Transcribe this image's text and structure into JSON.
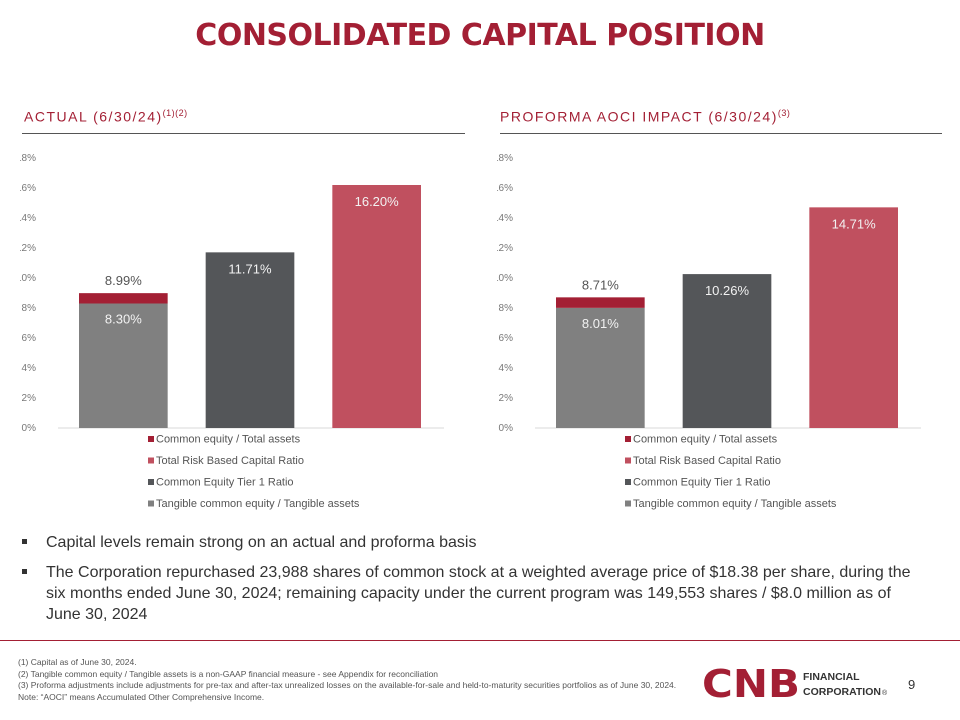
{
  "title": "CONSOLIDATED CAPITAL POSITION",
  "left_section": {
    "heading": "ACTUAL (6/30/24)",
    "superscript": "(1)(2)"
  },
  "right_section": {
    "heading": "PROFORMA AOCI IMPACT (6/30/24)",
    "superscript": "(3)"
  },
  "colors": {
    "common_equity_total_assets": "#a31f34",
    "total_risk_based": "#c0505f",
    "cet1": "#545659",
    "tangible": "#808080",
    "brand": "#a31f34"
  },
  "chart_data": [
    {
      "type": "bar",
      "ylim": [
        0,
        18
      ],
      "yticks": [
        "0%",
        "2%",
        "4%",
        "6%",
        "8%",
        "10%",
        "12%",
        "14%",
        "16%",
        "18%"
      ],
      "yticks_values": [
        0,
        2,
        4,
        6,
        8,
        10,
        12,
        14,
        16,
        18
      ],
      "grid": false,
      "legend_position": "bottom",
      "legend": [
        "Common equity / Total assets",
        "Total Risk Based Capital Ratio",
        "Common Equity Tier 1 Ratio",
        "Tangible common equity / Tangible assets"
      ],
      "bars": [
        {
          "stack": [
            {
              "series": "Tangible common equity / Tangible assets",
              "value": 8.3,
              "label": "8.30%"
            },
            {
              "series": "Common equity / Total assets",
              "value": 0.69,
              "total": 8.99,
              "label": "8.99%"
            }
          ]
        },
        {
          "stack": [
            {
              "series": "Common Equity Tier 1 Ratio",
              "value": 11.71,
              "label": "11.71%"
            }
          ]
        },
        {
          "stack": [
            {
              "series": "Total Risk Based Capital Ratio",
              "value": 16.2,
              "label": "16.20%"
            }
          ]
        }
      ]
    },
    {
      "type": "bar",
      "ylim": [
        0,
        18
      ],
      "yticks": [
        "0%",
        "2%",
        "4%",
        "6%",
        "8%",
        "10%",
        "12%",
        "14%",
        "16%",
        "18%"
      ],
      "yticks_values": [
        0,
        2,
        4,
        6,
        8,
        10,
        12,
        14,
        16,
        18
      ],
      "grid": false,
      "legend_position": "bottom",
      "legend": [
        "Common equity / Total assets",
        "Total Risk Based Capital Ratio",
        "Common Equity Tier 1 Ratio",
        "Tangible common equity / Tangible assets"
      ],
      "bars": [
        {
          "stack": [
            {
              "series": "Tangible common equity / Tangible assets",
              "value": 8.01,
              "label": "8.01%"
            },
            {
              "series": "Common equity / Total assets",
              "value": 0.7,
              "total": 8.71,
              "label": "8.71%"
            }
          ]
        },
        {
          "stack": [
            {
              "series": "Common Equity Tier 1 Ratio",
              "value": 10.26,
              "label": "10.26%"
            }
          ]
        },
        {
          "stack": [
            {
              "series": "Total Risk Based Capital Ratio",
              "value": 14.71,
              "label": "14.71%"
            }
          ]
        }
      ]
    }
  ],
  "bullets": [
    "Capital levels remain strong on an actual and proforma basis",
    "The Corporation repurchased 23,988 shares of common stock at a weighted average price of $18.38 per share, during the six months ended June 30, 2024; remaining capacity under the current program was 149,553 shares / $8.0 million as of June 30, 2024"
  ],
  "footnotes": [
    "(1) Capital as of June 30, 2024.",
    "(2) Tangible common equity / Tangible assets is a non-GAAP financial measure - see Appendix for reconciliation",
    "(3) Proforma adjustments include adjustments for pre-tax and after-tax unrealized losses on the available-for-sale and held-to-maturity securities portfolios as of June 30, 2024. Note: “AOCI” means Accumulated Other Comprehensive Income."
  ],
  "logo": {
    "mark": "CNB",
    "line1": "FINANCIAL",
    "line2": "CORPORATION",
    "registered": "®"
  },
  "page_number": "9"
}
